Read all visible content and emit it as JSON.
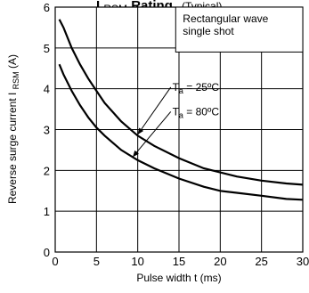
{
  "chart_data": {
    "type": "line",
    "title": "I",
    "title_sub": "RSM",
    "title_main": " Rating",
    "title_note": "(Typical)",
    "xlabel": "Pulse width   t (ms)",
    "ylabel_main": "Reverse surge current  I",
    "ylabel_sub": "RSM",
    "ylabel_unit": " (A)",
    "xlim": [
      0,
      30
    ],
    "ylim": [
      0,
      6
    ],
    "x_ticks": [
      "0",
      "5",
      "10",
      "15",
      "20",
      "25",
      "30"
    ],
    "y_ticks": [
      "0",
      "1",
      "2",
      "3",
      "4",
      "5",
      "6"
    ],
    "grid": true,
    "legend_lines": [
      "Rectangular wave",
      "single shot"
    ],
    "series": [
      {
        "name": "Ta = 25ºC",
        "label_main": "T",
        "label_sub": "a",
        "label_rest": " = 25ºC",
        "x": [
          0.5,
          1,
          2,
          3,
          4,
          5,
          6,
          8,
          10,
          12,
          15,
          18,
          20,
          22,
          25,
          28,
          30
        ],
        "y": [
          5.7,
          5.5,
          5.0,
          4.6,
          4.25,
          3.95,
          3.65,
          3.2,
          2.85,
          2.6,
          2.3,
          2.05,
          1.95,
          1.85,
          1.75,
          1.68,
          1.65
        ]
      },
      {
        "name": "Ta = 80ºC",
        "label_main": "T",
        "label_sub": "a",
        "label_rest": " = 80ºC",
        "x": [
          0.5,
          1,
          2,
          3,
          4,
          5,
          6,
          8,
          10,
          12,
          15,
          18,
          20,
          22,
          25,
          28,
          30
        ],
        "y": [
          4.6,
          4.35,
          3.95,
          3.6,
          3.3,
          3.05,
          2.85,
          2.5,
          2.25,
          2.05,
          1.8,
          1.6,
          1.5,
          1.45,
          1.38,
          1.3,
          1.28
        ]
      }
    ]
  }
}
